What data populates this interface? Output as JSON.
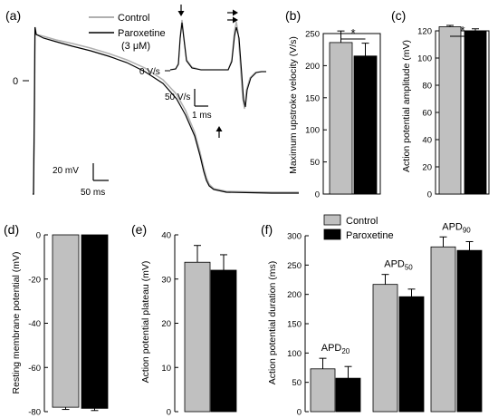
{
  "colors": {
    "control": "#c0c0c0",
    "paroxetine": "#000000",
    "control_trace": "#b0b0b0",
    "paroxetine_trace": "#000000"
  },
  "chart_data": [
    {
      "id": "a",
      "panel_label": "(a)",
      "type": "line",
      "legend": [
        "Control",
        "Paroxetine",
        "(3 μM)"
      ],
      "zero_label": "0",
      "scalebar_v": "20 mV",
      "scalebar_h": "50 ms",
      "inset": {
        "zero_label": "0 V/s",
        "scalebar_v": "50 V/s",
        "scalebar_h": "1 ms"
      }
    },
    {
      "id": "b",
      "panel_label": "(b)",
      "type": "bar",
      "categories": [
        "Control",
        "Paroxetine"
      ],
      "values": [
        236,
        215
      ],
      "errors": [
        18,
        20
      ],
      "ylabel": "Maximum upstroke velocity (V/s)",
      "ylim": [
        0,
        250
      ],
      "ticks": [
        0,
        50,
        100,
        150,
        200,
        250
      ],
      "significance": "*"
    },
    {
      "id": "c",
      "panel_label": "(c)",
      "type": "bar",
      "categories": [
        "Control",
        "Paroxetine"
      ],
      "values": [
        123,
        120
      ],
      "errors": [
        1,
        1.5
      ],
      "ylabel": "Action potential amplitude (mV)",
      "ylim": [
        0,
        120
      ],
      "ticks": [
        0,
        20,
        40,
        60,
        80,
        100,
        120
      ],
      "significance": "*"
    },
    {
      "id": "d",
      "panel_label": "(d)",
      "type": "bar",
      "categories": [
        "Control",
        "Paroxetine"
      ],
      "values": [
        -78,
        -78.5
      ],
      "errors": [
        1,
        1
      ],
      "ylabel": "Resting membrane potential (mV)",
      "ylim": [
        -80,
        0
      ],
      "ticks": [
        0,
        -20,
        -40,
        -60,
        -80
      ],
      "tick_labels": [
        "0",
        "-20",
        "-40",
        "-60",
        "-80"
      ]
    },
    {
      "id": "e",
      "panel_label": "(e)",
      "type": "bar",
      "categories": [
        "Control",
        "Paroxetine"
      ],
      "values": [
        33.8,
        32
      ],
      "errors": [
        3.8,
        3.5
      ],
      "ylabel": "Action potential plateau (mV)",
      "ylim": [
        0,
        40
      ],
      "ticks": [
        0,
        10,
        20,
        30,
        40
      ]
    },
    {
      "id": "f",
      "panel_label": "(f)",
      "type": "bar",
      "categories": [
        "APD20",
        "APD50",
        "APD90"
      ],
      "category_labels": [
        {
          "main": "APD",
          "sub": "20"
        },
        {
          "main": "APD",
          "sub": "50"
        },
        {
          "main": "APD",
          "sub": "90"
        }
      ],
      "series": [
        {
          "name": "Control",
          "values": [
            73,
            217,
            281
          ],
          "errors": [
            18,
            17,
            17
          ]
        },
        {
          "name": "Paroxetine",
          "values": [
            57,
            196,
            275
          ],
          "errors": [
            20,
            13,
            15
          ]
        }
      ],
      "ylabel": "Action potential duration (ms)",
      "ylim": [
        0,
        300
      ],
      "ticks": [
        0,
        50,
        100,
        150,
        200,
        250,
        300
      ],
      "legend_placement": "top-left"
    }
  ]
}
